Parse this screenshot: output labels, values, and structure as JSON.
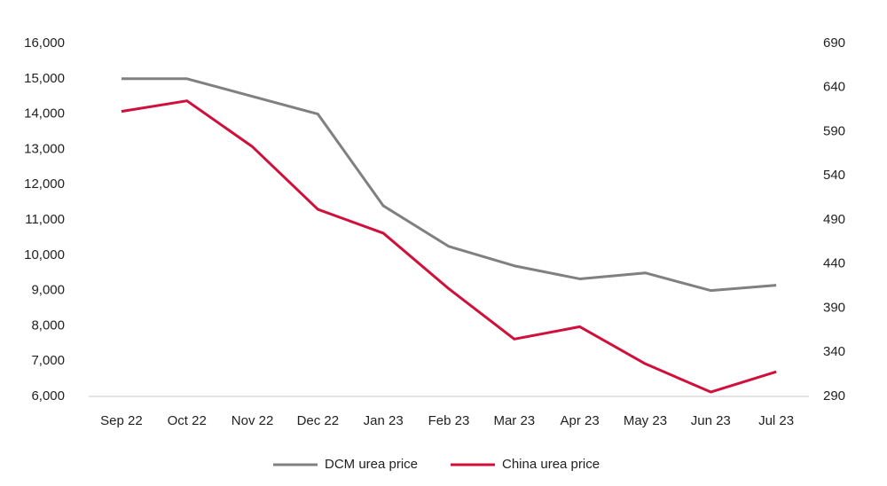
{
  "chart_data": {
    "type": "line",
    "categories": [
      "Sep 22",
      "Oct 22",
      "Nov 22",
      "Dec 22",
      "Jan 23",
      "Feb 23",
      "Mar 23",
      "Apr 23",
      "May 23",
      "Jun 23",
      "Jul 23"
    ],
    "series": [
      {
        "name": "DCM urea price",
        "color": "#808080",
        "values": [
          15000,
          15000,
          14500,
          14000,
          11400,
          10250,
          9700,
          9330,
          9500,
          9000,
          9150
        ]
      },
      {
        "name": "China urea price",
        "color": "#d0103a",
        "axis": "y2",
        "values": [
          613,
          625,
          573,
          502,
          475,
          412,
          355,
          369,
          327,
          295,
          318
        ]
      }
    ],
    "ylim": [
      6000,
      16000
    ],
    "yticks": [
      {
        "value": 6000,
        "label": "6,000"
      },
      {
        "value": 7000,
        "label": "7,000"
      },
      {
        "value": 8000,
        "label": "8,000"
      },
      {
        "value": 9000,
        "label": "9,000"
      },
      {
        "value": 10000,
        "label": "10,000"
      },
      {
        "value": 11000,
        "label": "11,000"
      },
      {
        "value": 12000,
        "label": "12,000"
      },
      {
        "value": 13000,
        "label": "13,000"
      },
      {
        "value": 14000,
        "label": "14,000"
      },
      {
        "value": 15000,
        "label": "15,000"
      },
      {
        "value": 16000,
        "label": "16,000"
      }
    ],
    "y2lim": [
      290,
      690
    ],
    "y2ticks": [
      290,
      340,
      390,
      440,
      490,
      540,
      590,
      640,
      690
    ],
    "grid": false,
    "legend": "bottom"
  }
}
